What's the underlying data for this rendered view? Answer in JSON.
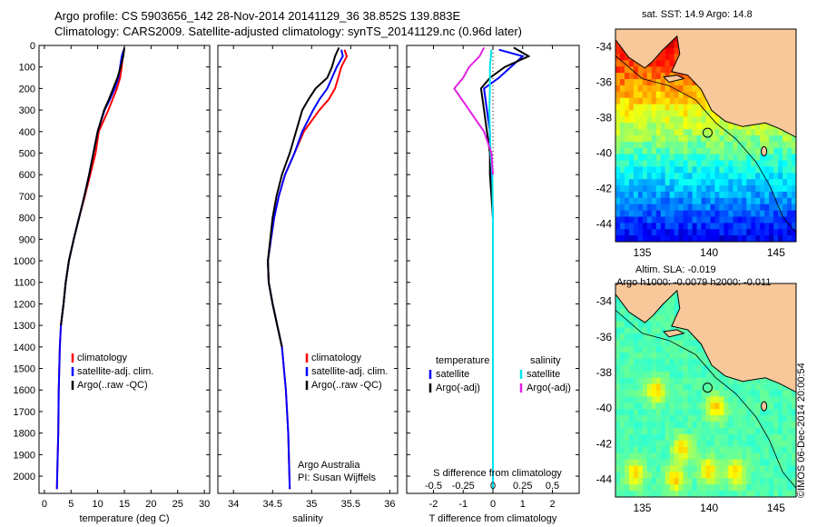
{
  "header": {
    "line1": "Argo profile: CS 5903656_142 28-Nov-2014 20141129_36 38.852S 139.883E",
    "line2": "Climatology: CARS2009. Satellite-adjusted climatology: synTS_20141129.nc (0.96d later)"
  },
  "colors": {
    "climatology": "#ff0000",
    "satellite": "#0000ff",
    "argo": "#000000",
    "satellite_salinity": "#00e5ee",
    "argo_salinity": "#e020e0",
    "land": "#f8c79a"
  },
  "chart_data": [
    {
      "type": "line",
      "id": "temperature",
      "xlabel": "temperature (deg C)",
      "ylabel": "",
      "xlim": [
        -1,
        31
      ],
      "ylim": [
        2080,
        0
      ],
      "xticks": [
        0,
        5,
        10,
        15,
        20,
        25,
        30
      ],
      "yticks": [
        0,
        100,
        200,
        300,
        400,
        500,
        600,
        700,
        800,
        900,
        1000,
        1100,
        1200,
        1300,
        1400,
        1500,
        1600,
        1700,
        1800,
        1900,
        2000
      ],
      "legend": [
        "climatology",
        "satellite-adj. clim.",
        "Argo(..raw -QC)"
      ],
      "series": [
        {
          "name": "climatology",
          "color": "#ff0000",
          "x": [
            14.9,
            14.7,
            14.5,
            14.2,
            13.6,
            12.8,
            12.0,
            10.2,
            9.6,
            8.6,
            7.6,
            6.5,
            5.5,
            4.6,
            4.0,
            3.6,
            3.1,
            2.9,
            2.7,
            2.6,
            2.5,
            2.4,
            2.35
          ],
          "y": [
            20,
            50,
            100,
            150,
            200,
            250,
            300,
            400,
            500,
            600,
            700,
            800,
            900,
            1000,
            1100,
            1200,
            1300,
            1400,
            1600,
            1800,
            1900,
            2000,
            2060
          ]
        },
        {
          "name": "satellite-adj. clim.",
          "color": "#0000ff",
          "x": [
            14.9,
            14.5,
            14.2,
            13.9,
            13.2,
            12.3,
            11.3,
            10.0,
            9.2,
            8.4,
            7.5,
            6.5,
            5.5,
            4.6,
            4.0,
            3.6,
            3.1,
            2.9,
            2.7,
            2.6,
            2.5,
            2.4,
            2.35
          ],
          "y": [
            20,
            50,
            100,
            150,
            200,
            250,
            300,
            400,
            500,
            600,
            700,
            800,
            900,
            1000,
            1100,
            1200,
            1300,
            1400,
            1600,
            1800,
            1900,
            2000,
            2060
          ]
        },
        {
          "name": "Argo(..raw -QC)",
          "color": "#000000",
          "x": [
            15.0,
            14.8,
            14.3,
            13.7,
            12.9,
            12.1,
            11.2,
            10.0,
            9.2,
            8.4,
            7.5,
            6.5,
            5.5,
            4.6,
            4.0,
            3.6,
            3.1
          ],
          "y": [
            10,
            50,
            100,
            150,
            200,
            250,
            300,
            400,
            500,
            600,
            700,
            800,
            900,
            1000,
            1100,
            1200,
            1300
          ]
        }
      ]
    },
    {
      "type": "line",
      "id": "salinity",
      "xlabel": "salinity",
      "ylabel": "",
      "xlim": [
        33.8,
        36.1
      ],
      "ylim": [
        2080,
        0
      ],
      "xticks": [
        34,
        34.5,
        35,
        35.5,
        36
      ],
      "xticklabels": [
        "34",
        "34.5",
        "35",
        "35.5",
        "36"
      ],
      "legend": [
        "climatology",
        "satellite-adj. clim.",
        "Argo(..raw -QC)"
      ],
      "annotations": [
        "Argo Australia",
        "PI: Susan Wijffels"
      ],
      "series": [
        {
          "name": "climatology",
          "color": "#ff0000",
          "x": [
            35.42,
            35.45,
            35.38,
            35.34,
            35.3,
            35.22,
            35.1,
            34.9,
            34.78,
            34.66,
            34.58,
            34.52,
            34.48,
            34.44,
            34.45,
            34.5,
            34.56,
            34.62,
            34.67,
            34.7,
            34.72
          ],
          "y": [
            20,
            50,
            100,
            150,
            200,
            250,
            300,
            400,
            500,
            600,
            700,
            800,
            900,
            1000,
            1100,
            1200,
            1300,
            1400,
            1600,
            1800,
            2060
          ]
        },
        {
          "name": "satellite-adj. clim.",
          "color": "#0000ff",
          "x": [
            35.38,
            35.4,
            35.32,
            35.26,
            35.2,
            35.1,
            35.02,
            34.88,
            34.78,
            34.66,
            34.58,
            34.52,
            34.48,
            34.44,
            34.45,
            34.5,
            34.56,
            34.62,
            34.67,
            34.7,
            34.72
          ],
          "y": [
            20,
            50,
            100,
            150,
            200,
            250,
            300,
            400,
            500,
            600,
            700,
            800,
            900,
            1000,
            1100,
            1200,
            1300,
            1400,
            1600,
            1800,
            2060
          ]
        },
        {
          "name": "Argo(..raw -QC)",
          "color": "#000000",
          "x": [
            35.35,
            35.3,
            35.26,
            35.2,
            35.05,
            34.96,
            34.88,
            34.8,
            34.72,
            34.62,
            34.55,
            34.5,
            34.47,
            34.44,
            34.45,
            34.5,
            34.56,
            34.62
          ],
          "y": [
            10,
            50,
            100,
            150,
            200,
            250,
            300,
            400,
            500,
            600,
            700,
            800,
            900,
            1000,
            1100,
            1200,
            1300,
            1400
          ]
        }
      ]
    },
    {
      "type": "line",
      "id": "difference",
      "xlabel": "T difference from climatology",
      "xlabel_top": "S difference from climatology",
      "xlim": [
        -2.9,
        2.9
      ],
      "ylim": [
        2080,
        0
      ],
      "xticks": [
        -2,
        -1,
        0,
        1,
        2
      ],
      "top_xticks": [
        "-0.5",
        "-0.25",
        "0",
        "0.25",
        "0.5"
      ],
      "top_xtick_positions": [
        -2,
        -1,
        0,
        1,
        2
      ],
      "legend": [
        "temperature",
        "satellite",
        "Argo(-adj)",
        "salinity",
        "satellite",
        "Argo(-adj)"
      ],
      "series": [
        {
          "name": "temperature satellite",
          "color": "#0000ff",
          "x": [
            0.2,
            1.0,
            0.6,
            0.2,
            -0.3,
            -0.2,
            -0.1,
            -0.1,
            -0.05,
            0,
            0,
            0,
            0,
            0,
            0,
            0
          ],
          "y": [
            20,
            50,
            100,
            150,
            200,
            300,
            400,
            500,
            600,
            800,
            1000,
            1200,
            1400,
            1600,
            1800,
            2060
          ]
        },
        {
          "name": "temperature Argo(-adj)",
          "color": "#000000",
          "x": [
            0.7,
            1.2,
            0.4,
            -0.1,
            -0.4,
            -0.3,
            -0.2,
            -0.1,
            -0.1,
            0,
            0,
            0,
            0,
            0
          ],
          "y": [
            10,
            50,
            100,
            150,
            200,
            300,
            400,
            500,
            600,
            800,
            1000,
            1100,
            1200,
            1300
          ]
        },
        {
          "name": "salinity satellite",
          "color": "#00e5ee",
          "x": [
            -0.05,
            -0.1,
            -0.1,
            -0.12,
            -0.1,
            -0.08,
            -0.02,
            0,
            0,
            0,
            0,
            0
          ],
          "y": [
            20,
            100,
            200,
            300,
            400,
            500,
            600,
            800,
            1000,
            1400,
            1800,
            2060
          ]
        },
        {
          "name": "salinity Argo(-adj)",
          "color": "#e020e0",
          "x": [
            -0.3,
            -0.45,
            -0.8,
            -1.0,
            -1.3,
            -0.8,
            -0.3,
            -0.05,
            0
          ],
          "y": [
            10,
            50,
            100,
            150,
            200,
            300,
            400,
            500,
            600
          ]
        }
      ]
    },
    {
      "type": "heatmap",
      "id": "sst-map",
      "title": "sat. SST: 14.9  Argo: 14.8",
      "xlim": [
        133,
        146.5
      ],
      "ylim": [
        -45,
        -33
      ],
      "xticks": [
        135,
        140,
        145
      ],
      "yticks": [
        -34,
        -36,
        -38,
        -40,
        -42,
        -44
      ],
      "marker": {
        "lon": 139.883,
        "lat": -38.852
      }
    },
    {
      "type": "heatmap",
      "id": "sla-map",
      "title": "Altim. SLA: -0.019",
      "subtitle": "Argo h1000: -0.0079  h2000: -0.011",
      "xlim": [
        133,
        146.5
      ],
      "ylim": [
        -45,
        -33
      ],
      "xticks": [
        135,
        140,
        145
      ],
      "yticks": [
        -34,
        -36,
        -38,
        -40,
        -42,
        -44
      ],
      "marker": {
        "lon": 139.883,
        "lat": -38.852
      }
    }
  ],
  "credit": "©IMOS 06-Dec-2014 20:00:54"
}
